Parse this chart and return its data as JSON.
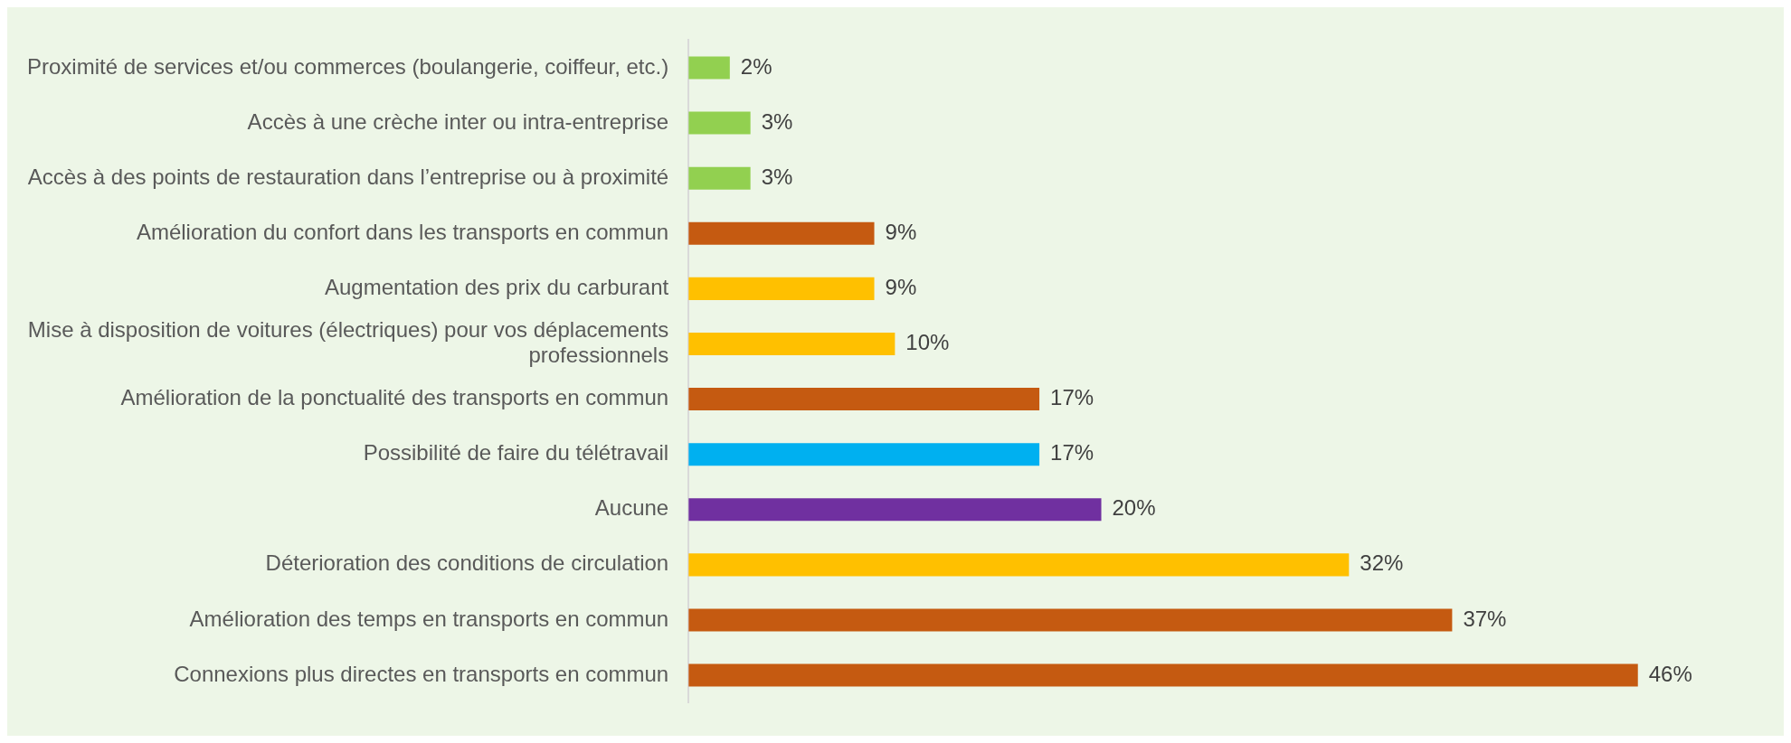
{
  "chart_data": {
    "type": "bar",
    "orientation": "horizontal",
    "data_labels": true,
    "categories": [
      "Proximité de services et/ou commerces (boulangerie, coiffeur, etc.)",
      "Accès à une crèche inter ou intra-entreprise",
      "Accès à des points de restauration dans l’entreprise ou à proximité",
      "Amélioration du confort dans les transports en commun",
      "Augmentation des prix du carburant",
      "Mise à disposition de voitures (électriques) pour vos déplacements professionnels",
      "Amélioration de la ponctualité des transports en commun",
      "Possibilité de faire du télétravail",
      "Aucune",
      "Déterioration des conditions de circulation",
      "Amélioration des temps en transports en commun",
      "Connexions plus directes en transports en commun"
    ],
    "values": [
      2,
      3,
      3,
      9,
      9,
      10,
      17,
      17,
      20,
      32,
      37,
      46
    ],
    "value_labels": [
      "2%",
      "3%",
      "3%",
      "9%",
      "9%",
      "10%",
      "17%",
      "17%",
      "20%",
      "32%",
      "37%",
      "46%"
    ],
    "colors": [
      "#92d050",
      "#92d050",
      "#92d050",
      "#c55a11",
      "#ffc000",
      "#ffc000",
      "#c55a11",
      "#00b0f0",
      "#7030a0",
      "#ffc000",
      "#c55a11",
      "#c55a11"
    ]
  }
}
